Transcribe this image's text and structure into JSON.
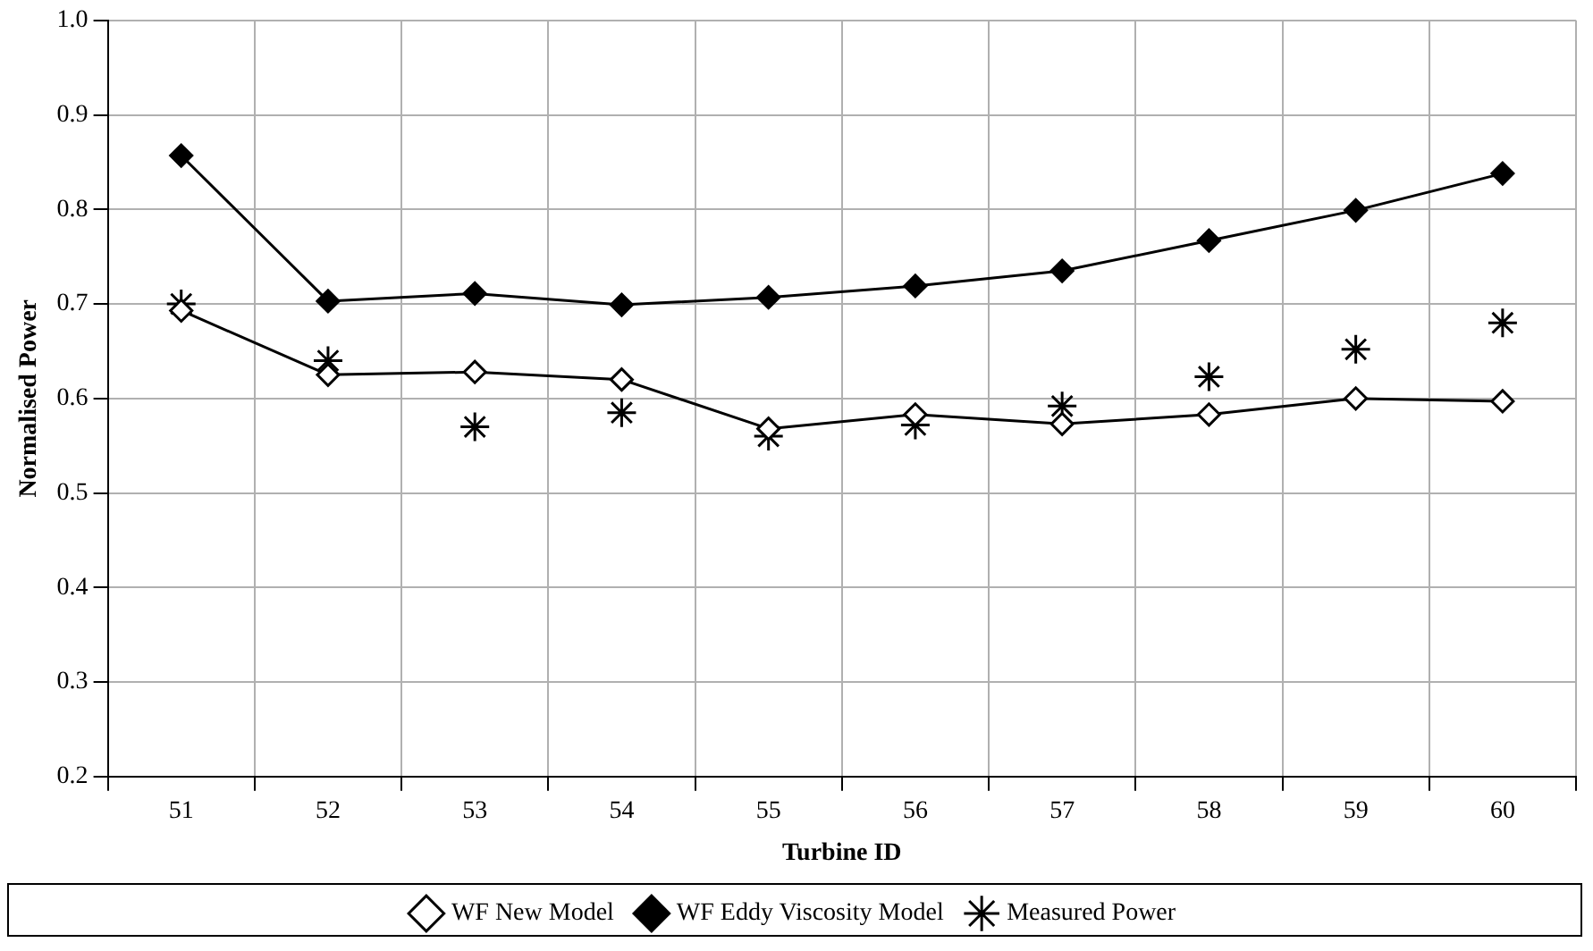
{
  "chart_data": {
    "type": "line",
    "xlabel": "Turbine ID",
    "ylabel": "Normalised Power",
    "categories": [
      "51",
      "52",
      "53",
      "54",
      "55",
      "56",
      "57",
      "58",
      "59",
      "60"
    ],
    "ylim": [
      0.2,
      1.0
    ],
    "yticks": [
      {
        "value": 0.2,
        "label": "0.2"
      },
      {
        "value": 0.3,
        "label": "0.3"
      },
      {
        "value": 0.4,
        "label": "0.4"
      },
      {
        "value": 0.5,
        "label": "0.5"
      },
      {
        "value": 0.6,
        "label": "0.6"
      },
      {
        "value": 0.7,
        "label": "0.7"
      },
      {
        "value": 0.8,
        "label": "0.8"
      },
      {
        "value": 0.9,
        "label": "0.9"
      },
      {
        "value": 1.0,
        "label": "1.0"
      }
    ],
    "grid": true,
    "legend": "bottom",
    "series": [
      {
        "name": "WF New Model",
        "color": "#000000",
        "marker": "diamond",
        "values": [
          0.693,
          0.625,
          0.628,
          0.62,
          0.568,
          0.583,
          0.573,
          0.583,
          0.6,
          0.597
        ]
      },
      {
        "name": "WF Eddy Viscosity Model",
        "color": "#000000",
        "marker": "diamond",
        "values": [
          0.857,
          0.703,
          0.711,
          0.699,
          0.707,
          0.719,
          0.735,
          0.767,
          0.799,
          0.838
        ]
      },
      {
        "name": "Measured Power",
        "type": "scatter",
        "color": "#000000",
        "marker": "cross",
        "values": [
          0.7,
          0.64,
          0.57,
          0.585,
          0.56,
          0.572,
          0.592,
          0.623,
          0.652,
          0.68
        ]
      }
    ]
  }
}
